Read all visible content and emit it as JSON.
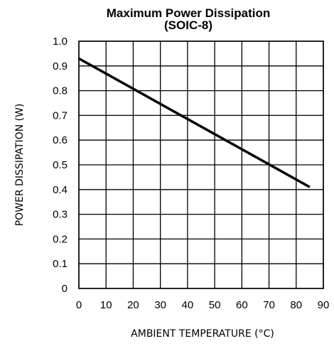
{
  "chart_data": {
    "type": "line",
    "title": "Maximum Power Dissipation",
    "subtitle": "(SOIC-8)",
    "xlabel": "AMBIENT TEMPERATURE (°C)",
    "ylabel": "POWER DISSIPATION (W)",
    "xlim": [
      0,
      90
    ],
    "ylim": [
      0,
      1.0
    ],
    "x_ticks": [
      0,
      10,
      20,
      30,
      40,
      50,
      60,
      70,
      80,
      90
    ],
    "x_tick_labels": [
      "0",
      "10",
      "20",
      "30",
      "40",
      "50",
      "60",
      "70",
      "80",
      "90"
    ],
    "y_ticks": [
      0,
      0.1,
      0.2,
      0.3,
      0.4,
      0.5,
      0.6,
      0.7,
      0.8,
      0.9,
      1.0
    ],
    "y_tick_labels": [
      "0",
      "0.1",
      "0.2",
      "0.3",
      "0.4",
      "0.5",
      "0.6",
      "0.7",
      "0.8",
      "0.9",
      "1.0"
    ],
    "grid": true,
    "series": [
      {
        "x": [
          0,
          85
        ],
        "y": [
          0.93,
          0.41
        ]
      }
    ]
  }
}
